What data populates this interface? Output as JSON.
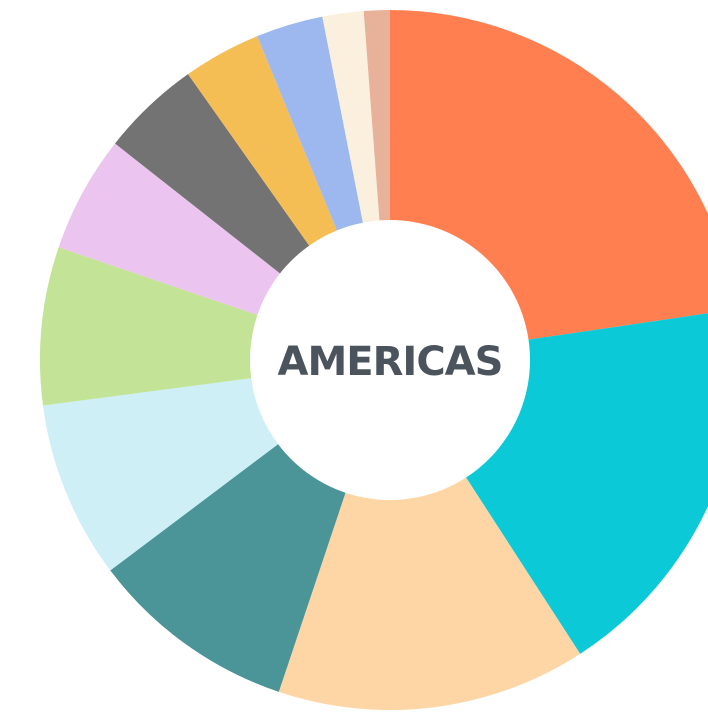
{
  "chart_data": {
    "type": "donut",
    "title": "AMERICAS",
    "values": [
      22.7,
      18.2,
      14.3,
      9.6,
      8.2,
      7.3,
      5.4,
      4.6,
      3.6,
      3.1,
      1.9,
      1.2
    ],
    "colors": [
      "#ff7f50",
      "#0bc9d6",
      "#fed5a4",
      "#4b9498",
      "#cdeff5",
      "#c3e396",
      "#ebc5ef",
      "#737373",
      "#f5be55",
      "#9db8ef",
      "#fbf0de",
      "#e8b29a"
    ]
  }
}
